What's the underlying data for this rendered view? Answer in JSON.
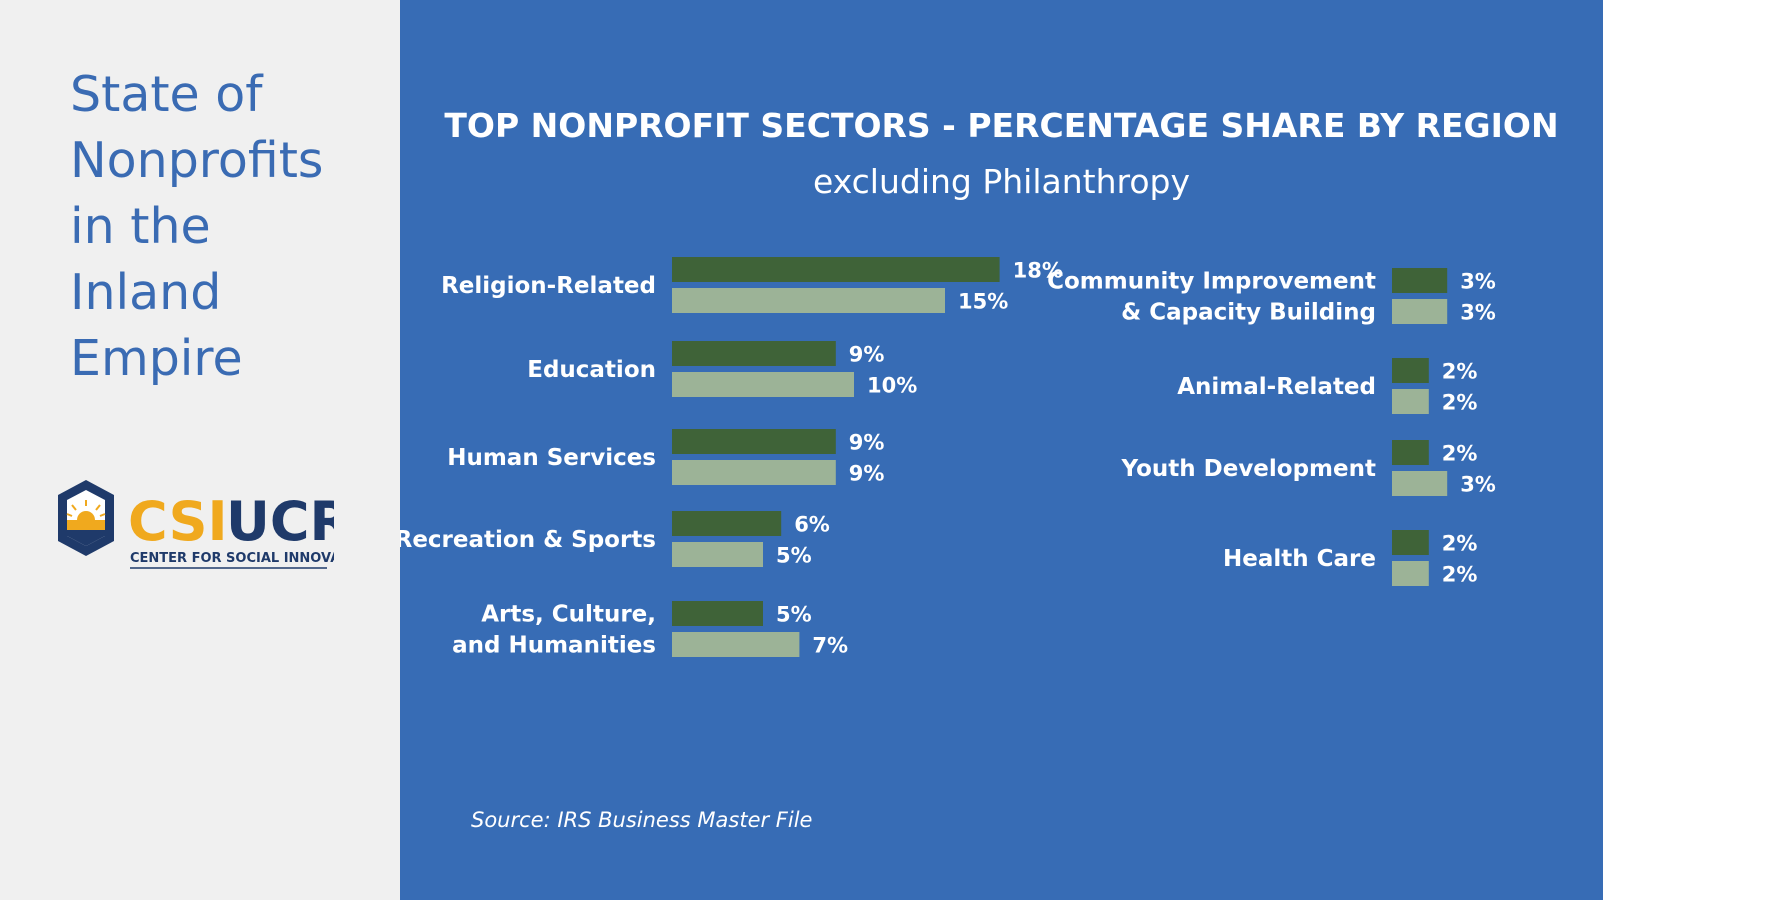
{
  "sidebar": {
    "title_lines": [
      "State of",
      "Nonprofits",
      "in the",
      "Inland",
      "Empire"
    ],
    "logo": {
      "brand_csi": "CSI",
      "brand_ucr": "UCR",
      "tagline": "CENTER FOR SOCIAL INNOVATION",
      "icon": "sunrise-hexagon-icon"
    }
  },
  "colors": {
    "sidebar_bg": "#f0f0f0",
    "panel_bg": "#376cb5",
    "title_text": "#3a6bb3",
    "series_dark": "#3f6338",
    "series_light": "#9cb397",
    "logo_gold": "#f0a91e",
    "logo_navy": "#1f3a6a"
  },
  "chart_data": {
    "type": "bar",
    "orientation": "horizontal",
    "title": "TOP NONPROFIT SECTORS - PERCENTAGE SHARE BY REGION",
    "subtitle": "excluding Philanthropy",
    "value_suffix": "%",
    "legend": "none",
    "grid": false,
    "panels": [
      {
        "categories": [
          [
            "Religion-Related"
          ],
          [
            "Education"
          ],
          [
            "Human Services"
          ],
          [
            "Recreation & Sports"
          ],
          [
            "Arts, Culture,",
            "and Humanities"
          ]
        ],
        "series": [
          {
            "values": [
              18,
              9,
              9,
              6,
              5
            ]
          },
          {
            "values": [
              15,
              10,
              9,
              5,
              7
            ]
          }
        ]
      },
      {
        "categories": [
          [
            "Community Improvement",
            "& Capacity Building"
          ],
          [
            "Animal-Related"
          ],
          [
            "Youth Development"
          ],
          [
            "Health Care"
          ]
        ],
        "series": [
          {
            "values": [
              3,
              2,
              2,
              2
            ]
          },
          {
            "values": [
              3,
              2,
              3,
              2
            ]
          }
        ]
      }
    ]
  },
  "source": "Source: IRS Business Master File"
}
